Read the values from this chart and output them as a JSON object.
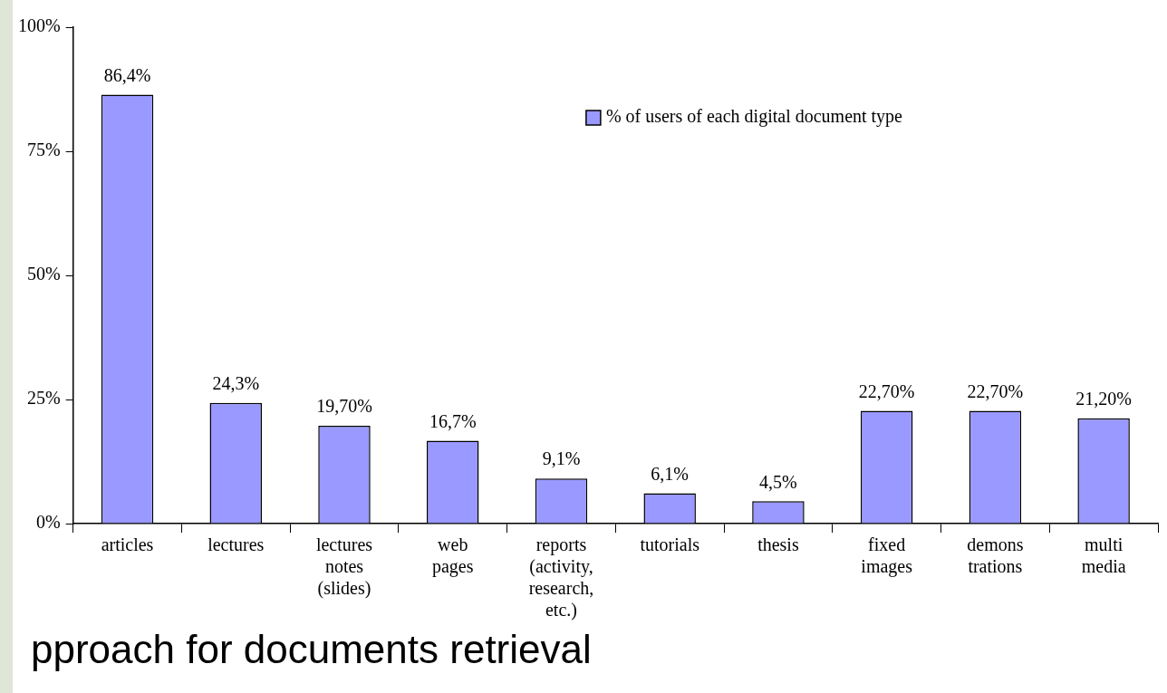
{
  "chart_data": {
    "type": "bar",
    "categories": [
      "articles",
      "lectures",
      "lectures notes (slides)",
      "web pages",
      "reports (activity, research, etc.)",
      "tutorials",
      "thesis",
      "fixed images",
      "demons trations",
      "multi media"
    ],
    "series": [
      {
        "name": "% of users of each digital document type",
        "color": "#9999ff",
        "values": [
          86.4,
          24.3,
          19.7,
          16.7,
          9.1,
          6.1,
          4.5,
          22.7,
          22.7,
          21.2
        ],
        "value_labels": [
          "86,4%",
          "24,3%",
          "19,70%",
          "16,7%",
          "9,1%",
          "6,1%",
          "4,5%",
          "22,70%",
          "22,70%",
          "21,20%"
        ]
      }
    ],
    "ylim": [
      0,
      100
    ],
    "yticks": [
      {
        "value": 0,
        "label": "0%"
      },
      {
        "value": 25,
        "label": "25%"
      },
      {
        "value": 50,
        "label": "50%"
      },
      {
        "value": 75,
        "label": "75%"
      },
      {
        "value": 100,
        "label": "100%"
      }
    ],
    "grid": false,
    "legend": "top right",
    "annotations": [
      "pproach for documents retrieval"
    ]
  }
}
